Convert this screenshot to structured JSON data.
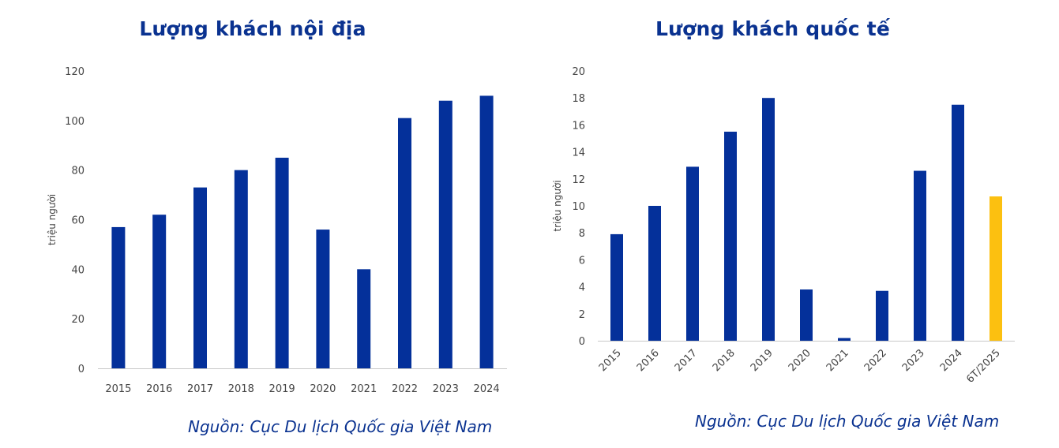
{
  "charts": [
    {
      "title": "Lượng khách nội địa",
      "source": "Nguồn: Cục Du lịch Quốc gia Việt Nam"
    },
    {
      "title": "Lượng khách quốc tế",
      "source": "Nguồn: Cục Du lịch Quốc gia Việt Nam"
    }
  ],
  "chart_data": [
    {
      "type": "bar",
      "title": "Lượng khách nội địa",
      "xlabel": "",
      "ylabel": "triệu người",
      "categories": [
        "2015",
        "2016",
        "2017",
        "2018",
        "2019",
        "2020",
        "2021",
        "2022",
        "2023",
        "2024"
      ],
      "values": [
        57,
        62,
        73,
        80,
        85,
        56,
        40,
        101,
        108,
        110
      ],
      "ylim": [
        0,
        120
      ],
      "yticks": [
        0,
        20,
        40,
        60,
        80,
        100,
        120
      ],
      "bar_colors": [
        "#04309a",
        "#04309a",
        "#04309a",
        "#04309a",
        "#04309a",
        "#04309a",
        "#04309a",
        "#04309a",
        "#04309a",
        "#04309a"
      ],
      "grid": false,
      "legend": "none"
    },
    {
      "type": "bar",
      "title": "Lượng khách quốc tế",
      "xlabel": "",
      "ylabel": "triệu người",
      "categories": [
        "2015",
        "2016",
        "2017",
        "2018",
        "2019",
        "2020",
        "2021",
        "2022",
        "2023",
        "2024",
        "6T/2025"
      ],
      "values": [
        7.9,
        10.0,
        12.9,
        15.5,
        18.0,
        3.8,
        0.2,
        3.7,
        12.6,
        17.5,
        10.7
      ],
      "ylim": [
        0,
        20
      ],
      "yticks": [
        0,
        2,
        4,
        6,
        8,
        10,
        12,
        14,
        16,
        18,
        20
      ],
      "bar_colors": [
        "#04309a",
        "#04309a",
        "#04309a",
        "#04309a",
        "#04309a",
        "#04309a",
        "#04309a",
        "#04309a",
        "#04309a",
        "#04309a",
        "#fcc010"
      ],
      "xtick_rotation": "diagonal",
      "grid": false,
      "legend": "none"
    }
  ]
}
